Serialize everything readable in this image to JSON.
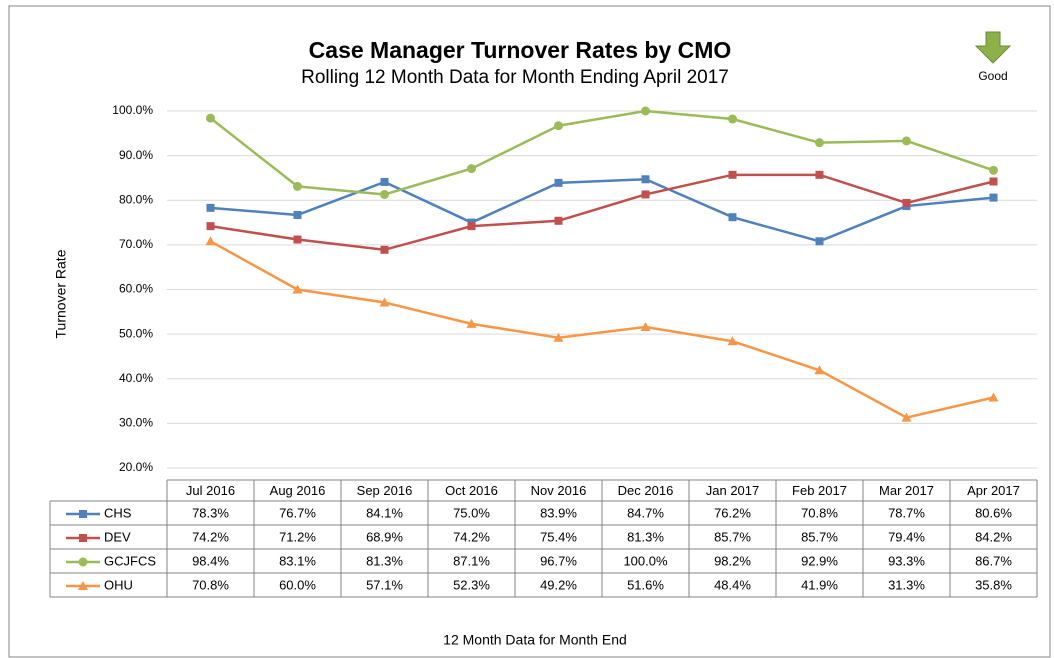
{
  "chart_data": {
    "type": "line",
    "title": "Case Manager Turnover Rates by CMO",
    "subtitle": "Rolling 12 Month Data for Month Ending April 2017",
    "y_label": "Turnover Rate",
    "x_label": "12 Month Data for Month End",
    "annotation": "Good",
    "categories": [
      "Jul 2016",
      "Aug 2016",
      "Sep 2016",
      "Oct 2016",
      "Nov 2016",
      "Dec 2016",
      "Jan 2017",
      "Feb 2017",
      "Mar 2017",
      "Apr 2017"
    ],
    "series": [
      {
        "name": "CHS",
        "color": "#4f81bd",
        "marker": "square",
        "values": [
          78.3,
          76.7,
          84.1,
          75.0,
          83.9,
          84.7,
          76.2,
          70.8,
          78.7,
          80.6
        ],
        "value_labels": [
          "78.3%",
          "76.7%",
          "84.1%",
          "75.0%",
          "83.9%",
          "84.7%",
          "76.2%",
          "70.8%",
          "78.7%",
          "80.6%"
        ]
      },
      {
        "name": "DEV",
        "color": "#c0504d",
        "marker": "square",
        "values": [
          74.2,
          71.2,
          68.9,
          74.2,
          75.4,
          81.3,
          85.7,
          85.7,
          79.4,
          84.2
        ],
        "value_labels": [
          "74.2%",
          "71.2%",
          "68.9%",
          "74.2%",
          "75.4%",
          "81.3%",
          "85.7%",
          "85.7%",
          "79.4%",
          "84.2%"
        ]
      },
      {
        "name": "GCJFCS",
        "color": "#9bbb59",
        "marker": "circle",
        "values": [
          98.4,
          83.1,
          81.3,
          87.1,
          96.7,
          100.0,
          98.2,
          92.9,
          93.3,
          86.7
        ],
        "value_labels": [
          "98.4%",
          "83.1%",
          "81.3%",
          "87.1%",
          "96.7%",
          "100.0%",
          "98.2%",
          "92.9%",
          "93.3%",
          "86.7%"
        ]
      },
      {
        "name": "OHU",
        "color": "#f79646",
        "marker": "triangle",
        "values": [
          70.8,
          60.0,
          57.1,
          52.3,
          49.2,
          51.6,
          48.4,
          41.9,
          31.3,
          35.8
        ],
        "value_labels": [
          "70.8%",
          "60.0%",
          "57.1%",
          "52.3%",
          "49.2%",
          "51.6%",
          "48.4%",
          "41.9%",
          "31.3%",
          "35.8%"
        ]
      }
    ],
    "ylim": [
      20,
      100
    ],
    "yticks": [
      {
        "value": 20,
        "label": "20.0%"
      },
      {
        "value": 30,
        "label": "30.0%"
      },
      {
        "value": 40,
        "label": "40.0%"
      },
      {
        "value": 50,
        "label": "50.0%"
      },
      {
        "value": 60,
        "label": "60.0%"
      },
      {
        "value": 70,
        "label": "70.0%"
      },
      {
        "value": 80,
        "label": "80.0%"
      },
      {
        "value": 90,
        "label": "90.0%"
      },
      {
        "value": 100,
        "label": "100.0%"
      }
    ],
    "grid": true
  }
}
